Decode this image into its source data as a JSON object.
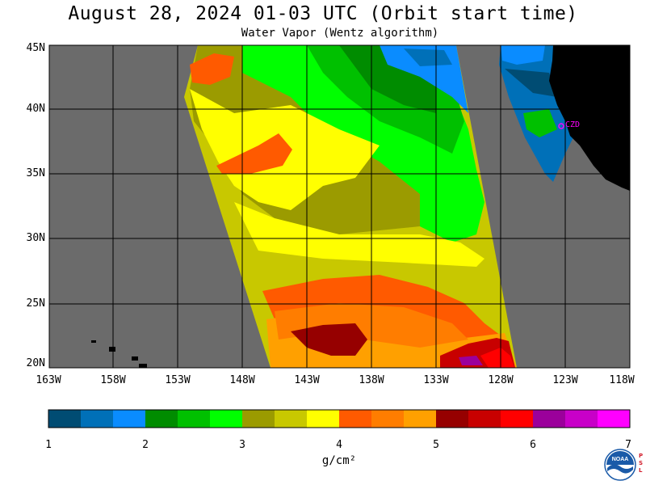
{
  "title": "August 28, 2024  01-03 UTC  (Orbit start time)",
  "subtitle": "Water Vapor (Wentz algorithm)",
  "map": {
    "lat_labels": [
      "45N",
      "40N",
      "35N",
      "30N",
      "25N",
      "20N"
    ],
    "lon_labels": [
      "163W",
      "158W",
      "153W",
      "148W",
      "143W",
      "138W",
      "133W",
      "128W",
      "123W",
      "118W"
    ],
    "station_label": "CZD",
    "colors": {
      "no_data": "#6b6b6b",
      "land": "#000000",
      "station": "#ff00ff"
    }
  },
  "colorbar": {
    "ticks": [
      "1",
      "2",
      "3",
      "4",
      "5",
      "6",
      "7"
    ],
    "units": "g/cm²",
    "colors": [
      "#004c73",
      "#0070b8",
      "#0a8cff",
      "#008c00",
      "#00c000",
      "#00ff00",
      "#9b9b00",
      "#c8c800",
      "#ffff00",
      "#ff5a00",
      "#ff7d00",
      "#ffa000",
      "#960000",
      "#c80000",
      "#ff0000",
      "#9b009b",
      "#c800c8",
      "#ff00ff"
    ]
  },
  "logo": {
    "text": "NOAA",
    "side_text": [
      "P",
      "S",
      "L"
    ]
  }
}
